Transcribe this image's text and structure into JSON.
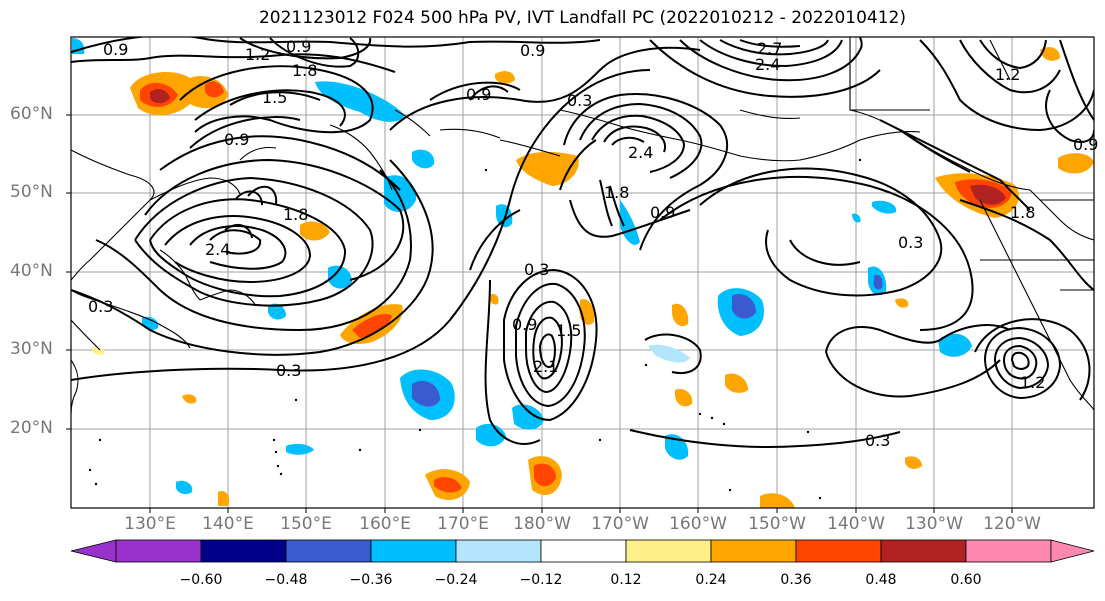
{
  "title": "2021123012 F024 500 hPa PV, IVT Landfall PC (2022010212 - 2022010412)",
  "map": {
    "lat_labels": [
      "60°N",
      "50°N",
      "40°N",
      "30°N",
      "20°N"
    ],
    "lon_labels": [
      "130°E",
      "140°E",
      "150°E",
      "160°E",
      "170°E",
      "180°W",
      "170°W",
      "160°W",
      "150°W",
      "140°W",
      "130°W",
      "120°W"
    ],
    "contour_labels": [
      "0.9",
      "1.2",
      "0.9",
      "1.8",
      "0.9",
      "0.9",
      "0.3",
      "2.7",
      "2.4",
      "1.5",
      "1.2",
      "0.9",
      "2.4",
      "1.8",
      "2.4",
      "1.8",
      "0.9",
      "0.3",
      "0.3",
      "0.3",
      "0.9",
      "2.1",
      "1.5",
      "0.3",
      "0.3",
      "1.2",
      "0.9",
      "1.8"
    ],
    "colors": {
      "contour": "#000000",
      "coast": "#000000",
      "grid": "#a0a0a0",
      "positive_fill": [
        "#fff08a",
        "#ffa500",
        "#ff4500",
        "#b22222"
      ],
      "negative_fill": [
        "#b3e5fc",
        "#00bfff",
        "#3a5bcd",
        "#00008b"
      ]
    }
  },
  "colorbar": {
    "ticks": [
      "−0.60",
      "−0.48",
      "−0.36",
      "−0.24",
      "−0.12",
      "0.12",
      "0.24",
      "0.36",
      "0.48",
      "0.60"
    ],
    "colors": [
      "#9932cc",
      "#00008b",
      "#3a5bcd",
      "#00bfff",
      "#b3e5fc",
      "#ffffff",
      "#fff08a",
      "#ffa500",
      "#ff4500",
      "#b22222",
      "#ff88b0"
    ]
  }
}
